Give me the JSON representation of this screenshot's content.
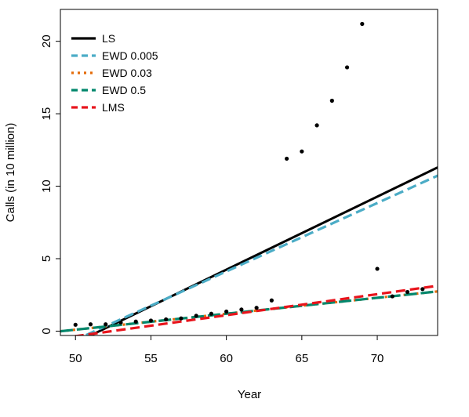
{
  "chart_data": {
    "type": "line",
    "title": "",
    "xlabel": "Year",
    "ylabel": "Calls (in 10 million)",
    "xlim": [
      49,
      74
    ],
    "ylim": [
      -0.3,
      22.2
    ],
    "x_ticks": [
      50,
      55,
      60,
      65,
      70
    ],
    "y_ticks": [
      0,
      5,
      10,
      15,
      20
    ],
    "grid": false,
    "legend_position": "top-left",
    "points": [
      {
        "x": 50,
        "y": 0.44
      },
      {
        "x": 51,
        "y": 0.47
      },
      {
        "x": 52,
        "y": 0.47
      },
      {
        "x": 53,
        "y": 0.59
      },
      {
        "x": 54,
        "y": 0.66
      },
      {
        "x": 55,
        "y": 0.73
      },
      {
        "x": 56,
        "y": 0.81
      },
      {
        "x": 57,
        "y": 0.88
      },
      {
        "x": 58,
        "y": 1.06
      },
      {
        "x": 59,
        "y": 1.2
      },
      {
        "x": 60,
        "y": 1.35
      },
      {
        "x": 61,
        "y": 1.49
      },
      {
        "x": 62,
        "y": 1.61
      },
      {
        "x": 63,
        "y": 2.12
      },
      {
        "x": 64,
        "y": 11.9
      },
      {
        "x": 65,
        "y": 12.4
      },
      {
        "x": 66,
        "y": 14.2
      },
      {
        "x": 67,
        "y": 15.9
      },
      {
        "x": 68,
        "y": 18.2
      },
      {
        "x": 69,
        "y": 21.2
      },
      {
        "x": 70,
        "y": 4.3
      },
      {
        "x": 71,
        "y": 2.4
      },
      {
        "x": 72,
        "y": 2.7
      },
      {
        "x": 73,
        "y": 2.9
      }
    ],
    "series": [
      {
        "name": "LS",
        "color": "#000000",
        "dash": "solid",
        "intercept": -26.0,
        "slope": 0.504
      },
      {
        "name": "EWD 0.005",
        "color": "#4bacc6",
        "dash": "dashed",
        "intercept": -24.2,
        "slope": 0.472
      },
      {
        "name": "EWD 0.03",
        "color": "#e46c0a",
        "dash": "dotted",
        "intercept": -5.4,
        "slope": 0.11
      },
      {
        "name": "EWD 0.5",
        "color": "#00876c",
        "dash": "longdash",
        "intercept": -5.4,
        "slope": 0.11
      },
      {
        "name": "LMS",
        "color": "#e8141c",
        "dash": "dashed",
        "intercept": -7.6,
        "slope": 0.145
      }
    ]
  }
}
